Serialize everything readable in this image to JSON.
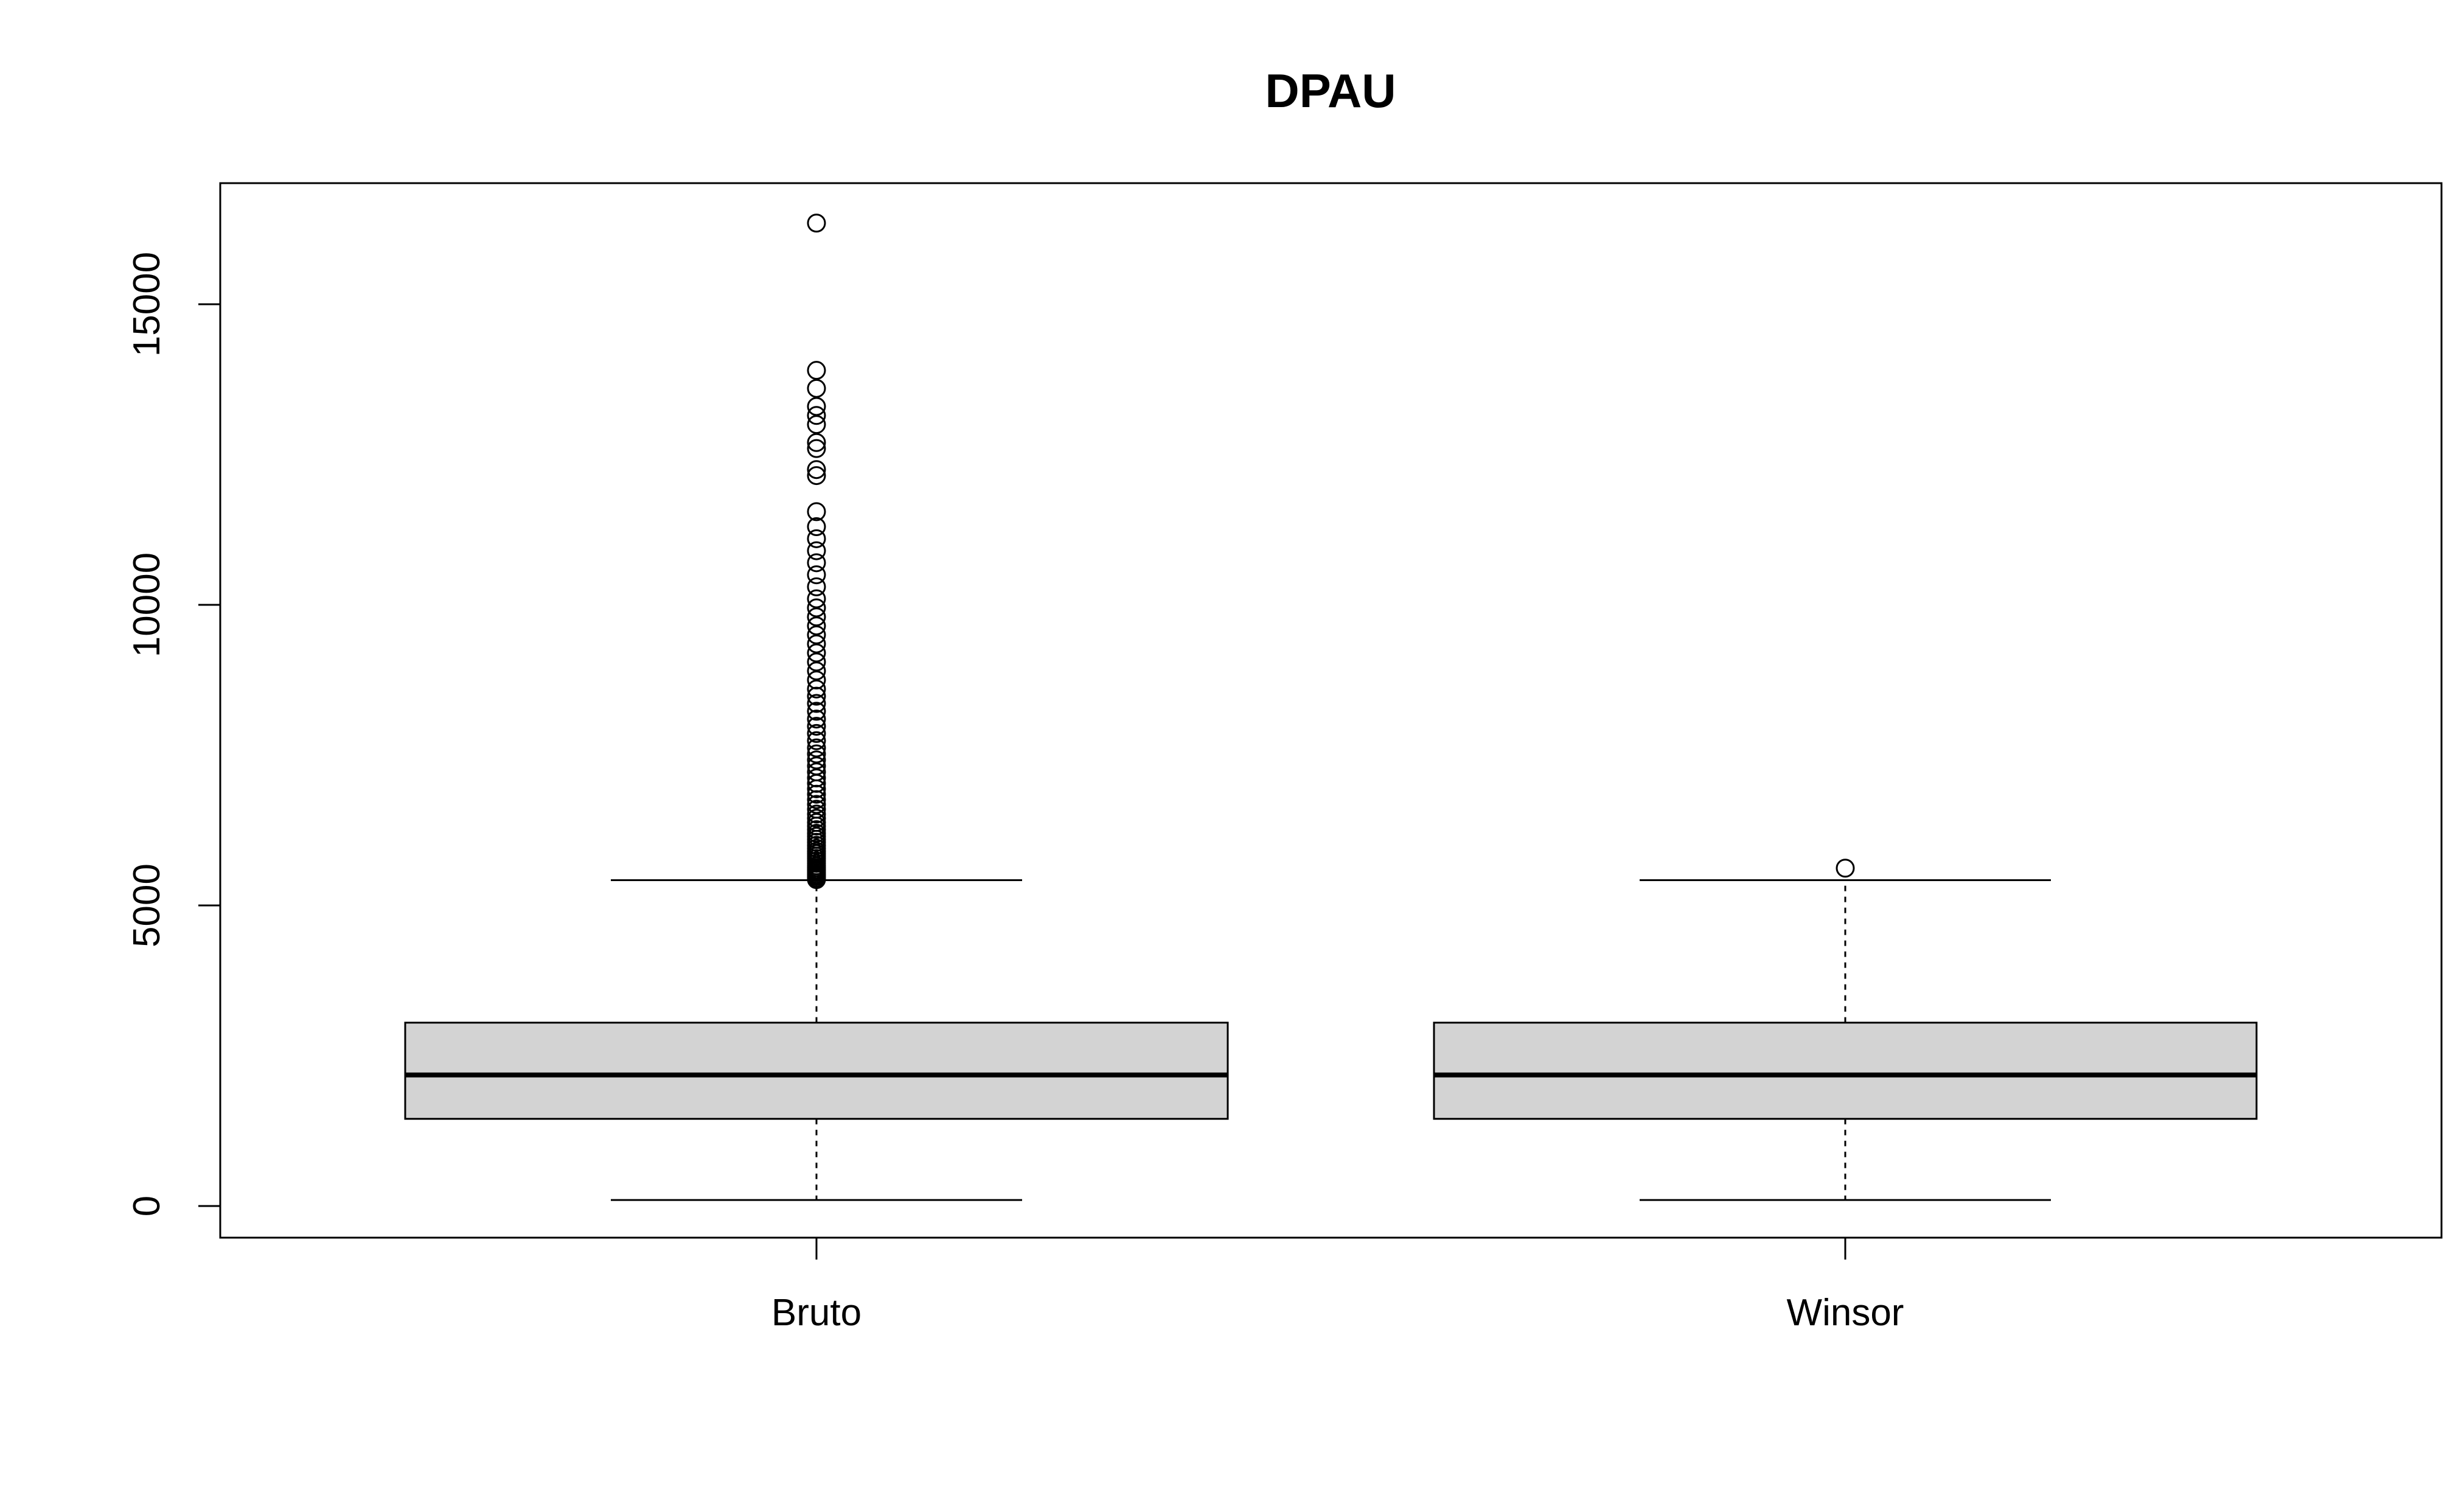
{
  "chart_data": {
    "type": "box",
    "title": "DPAU",
    "xlabel": "",
    "ylabel": "",
    "ylim": [
      -500,
      16900
    ],
    "y_ticks": [
      0,
      5000,
      10000,
      15000
    ],
    "y_tick_labels": [
      "0",
      "5000",
      "10000",
      "15000"
    ],
    "categories": [
      "Bruto",
      "Winsor"
    ],
    "grid": false,
    "colors": {
      "box_fill": "#d3d3d3",
      "stroke": "#000000",
      "background": "#ffffff"
    },
    "series": [
      {
        "category": "Bruto",
        "whisker_low": 100,
        "q1": 1450,
        "median": 2180,
        "q3": 3050,
        "whisker_high": 5420,
        "outliers": [
          5430,
          5450,
          5480,
          5500,
          5520,
          5550,
          5580,
          5600,
          5630,
          5660,
          5700,
          5740,
          5780,
          5820,
          5860,
          5900,
          5950,
          6000,
          6050,
          6100,
          6150,
          6200,
          6260,
          6320,
          6380,
          6450,
          6520,
          6600,
          6680,
          6760,
          6850,
          6940,
          7030,
          7120,
          7220,
          7320,
          7420,
          7520,
          7620,
          7740,
          7860,
          7980,
          8100,
          8230,
          8360,
          8480,
          8600,
          8750,
          8900,
          9050,
          9200,
          9350,
          9500,
          9650,
          9800,
          9950,
          10100,
          10300,
          10500,
          10700,
          10900,
          11100,
          11300,
          11550,
          12150,
          12250,
          12600,
          12700,
          13000,
          13150,
          13300,
          13600,
          13900,
          16350
        ]
      },
      {
        "category": "Winsor",
        "whisker_low": 100,
        "q1": 1450,
        "median": 2180,
        "q3": 3050,
        "whisker_high": 5420,
        "outliers": [
          5620
        ]
      }
    ]
  }
}
